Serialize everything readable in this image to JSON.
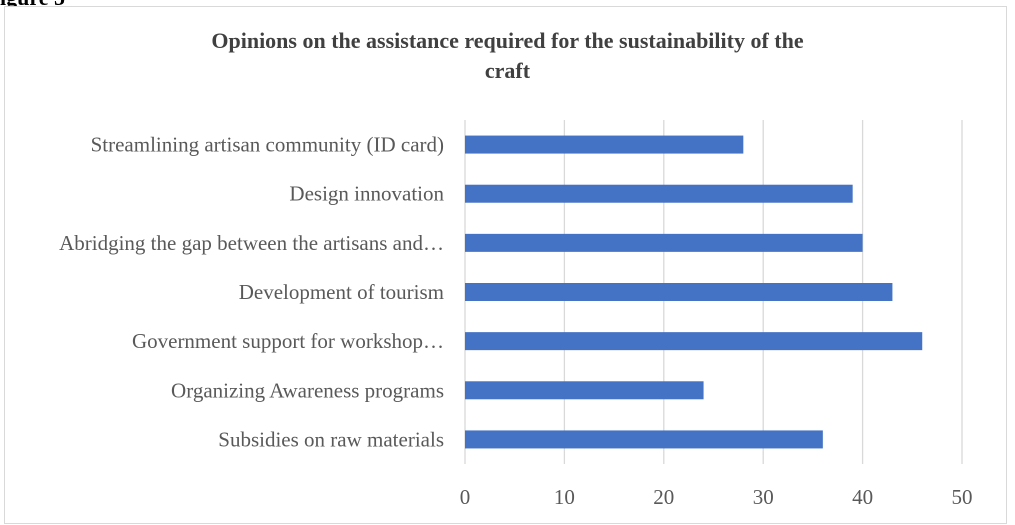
{
  "caption_fragment": "igure 5",
  "chart_data": {
    "type": "bar",
    "orientation": "horizontal",
    "title_lines": [
      "Opinions on the assistance required for the sustainability of the",
      "craft"
    ],
    "categories": [
      "Streamlining artisan community (ID card)",
      "Design innovation",
      "Abridging the gap between the artisans and…",
      "Development of tourism",
      "Government support for workshop…",
      "Organizing Awareness programs",
      "Subsidies on raw materials"
    ],
    "values": [
      28,
      39,
      40,
      43,
      46,
      24,
      36
    ],
    "xlim": [
      0,
      50
    ],
    "xticks": [
      0,
      10,
      20,
      30,
      40,
      50
    ],
    "grid": true,
    "legend": "none",
    "bar_color": "#4472c4",
    "grid_color": "#d9d9d9"
  }
}
